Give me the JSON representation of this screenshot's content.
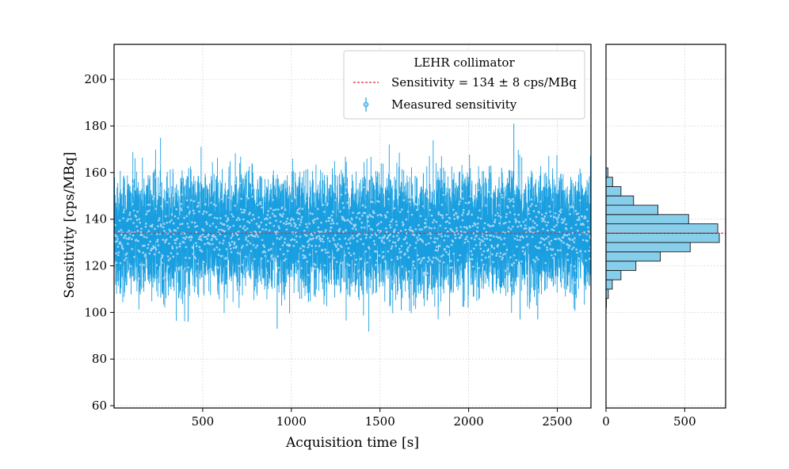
{
  "chart_data": [
    {
      "type": "scatter",
      "panel": "main",
      "title": "",
      "xlabel": "Acquisition time [s]",
      "ylabel": "Sensitivity [cps/MBq]",
      "xlim": [
        0,
        2690
      ],
      "ylim": [
        59,
        215
      ],
      "xticks": [
        500,
        1000,
        1500,
        2000,
        2500
      ],
      "yticks": [
        60,
        80,
        100,
        120,
        140,
        160,
        180,
        200
      ],
      "grid": true,
      "legend": {
        "title": "LEHR collimator",
        "location": "top-right",
        "entries": [
          {
            "label": "Sensitivity = 134 ± 8 cps/MBq",
            "style": "dashed-line"
          },
          {
            "label": "Measured sensitivity",
            "style": "errorbar-marker"
          }
        ]
      },
      "reference_line": {
        "name": "Sensitivity",
        "value": 134
      },
      "series": [
        {
          "name": "Measured sensitivity",
          "x_range": [
            0,
            2690
          ],
          "points_shown": "~2700 (one per second)",
          "mean": 134,
          "std": 8,
          "errorbar_halfwidth": 12,
          "min_observed": 93,
          "max_observed": 181,
          "notable_points": [
            {
              "x": 418,
              "y_low": 96
            },
            {
              "x": 920,
              "y_low": 93
            },
            {
              "x": 1620,
              "y_low": 101
            },
            {
              "x": 2255,
              "y_high": 181
            },
            {
              "x": 2290,
              "y_low": 97
            },
            {
              "x": 2390,
              "y_low": 97
            }
          ]
        }
      ],
      "colors": {
        "data": "#1a9fe0",
        "marker_face": "#a8d4f0",
        "reference": "#e8282d"
      }
    },
    {
      "type": "bar",
      "panel": "histogram",
      "orientation": "horizontal",
      "xlabel": "",
      "ylabel": "",
      "xlim": [
        0,
        760
      ],
      "ylim": [
        59,
        215
      ],
      "xticks": [
        0,
        500
      ],
      "grid": true,
      "bin_edges": [
        102,
        106,
        110,
        114,
        118,
        122,
        126,
        130,
        134,
        138,
        142,
        146,
        150,
        154,
        158,
        162
      ],
      "counts": [
        2,
        15,
        40,
        95,
        190,
        345,
        535,
        720,
        710,
        525,
        330,
        175,
        95,
        42,
        12
      ],
      "reference_line": {
        "name": "Sensitivity",
        "value": 134
      },
      "colors": {
        "fill": "#87ceeb",
        "edge": "#1a1a1a",
        "reference": "#e8282d"
      }
    }
  ]
}
